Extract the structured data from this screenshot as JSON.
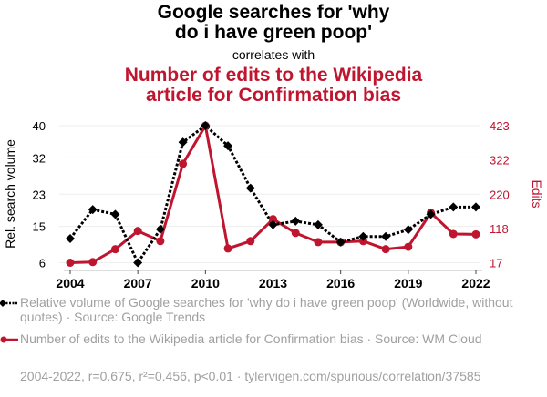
{
  "header": {
    "title_line1": "Google searches for 'why",
    "title_line2": "do i have green poop'",
    "subtitle": "correlates with",
    "title2_line1": "Number of edits to the Wikipedia",
    "title2_line2": "article for Confirmation bias"
  },
  "legend": {
    "series1": "Relative volume of Google searches for 'why do i have green poop' (Worldwide, without quotes) · Source: Google Trends",
    "series2": "Number of edits to the Wikipedia article for Confirmation bias · Source: WM Cloud"
  },
  "footer": "2004-2022, r=0.675, r²=0.456, p<0.01 · tylervigen.com/spurious/correlation/37585",
  "colors": {
    "series1": "#000000",
    "series2": "#c0152f",
    "grid": "#eeeeee",
    "footer": "#a0a0a0"
  },
  "chart_data": {
    "type": "line",
    "x": [
      2004,
      2005,
      2006,
      2007,
      2008,
      2009,
      2010,
      2011,
      2012,
      2013,
      2014,
      2015,
      2016,
      2017,
      2018,
      2019,
      2020,
      2021,
      2022
    ],
    "xticks": [
      "2004",
      "2007",
      "2010",
      "2013",
      "2016",
      "2019",
      "2022"
    ],
    "left_axis": {
      "label": "Rel. search volume",
      "ticks": [
        "6",
        "15",
        "23",
        "32",
        "40"
      ],
      "range": [
        6,
        40
      ]
    },
    "right_axis": {
      "label": "Edits",
      "ticks": [
        "17",
        "118",
        "220",
        "322",
        "423"
      ],
      "range": [
        17,
        423
      ]
    },
    "series": [
      {
        "name": "Relative volume of Google searches for 'why do i have green poop'",
        "axis": "left",
        "style": "dotted-diamond",
        "values": [
          12,
          19.2,
          18,
          6,
          14.3,
          35.9,
          40,
          35,
          24.5,
          15.4,
          16.3,
          15.4,
          11.1,
          12.5,
          12.5,
          14.2,
          18,
          19.8,
          19.8
        ]
      },
      {
        "name": "Number of edits to the Wikipedia article for Confirmation bias",
        "axis": "right",
        "style": "solid-circle",
        "values": [
          17,
          19,
          57,
          111,
          81,
          310,
          423,
          59,
          81,
          146,
          105,
          78,
          78,
          81,
          57,
          64,
          165,
          102,
          101
        ]
      }
    ],
    "grid": true,
    "legend_position": "bottom-left"
  }
}
